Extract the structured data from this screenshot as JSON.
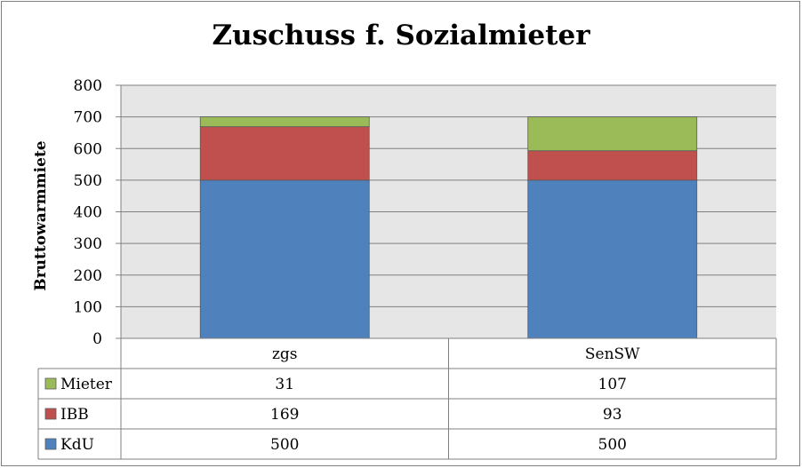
{
  "chart_data": {
    "type": "bar",
    "stacked": true,
    "title": "Zuschuss f. Sozialmieter",
    "ylabel": "Bruttowarmmiete",
    "xlabel": "",
    "ylim": [
      0,
      800
    ],
    "yticks": [
      0,
      100,
      200,
      300,
      400,
      500,
      600,
      700,
      800
    ],
    "grid": true,
    "legend": "data-table",
    "categories": [
      "zgs",
      "SenSW"
    ],
    "series": [
      {
        "name": "KdU",
        "values": [
          500,
          500
        ],
        "color": "#4f81bd"
      },
      {
        "name": "IBB",
        "values": [
          169,
          93
        ],
        "color": "#c0504d"
      },
      {
        "name": "Mieter",
        "values": [
          31,
          107
        ],
        "color": "#9bbb59"
      }
    ],
    "table_row_order": [
      "Mieter",
      "IBB",
      "KdU"
    ]
  }
}
